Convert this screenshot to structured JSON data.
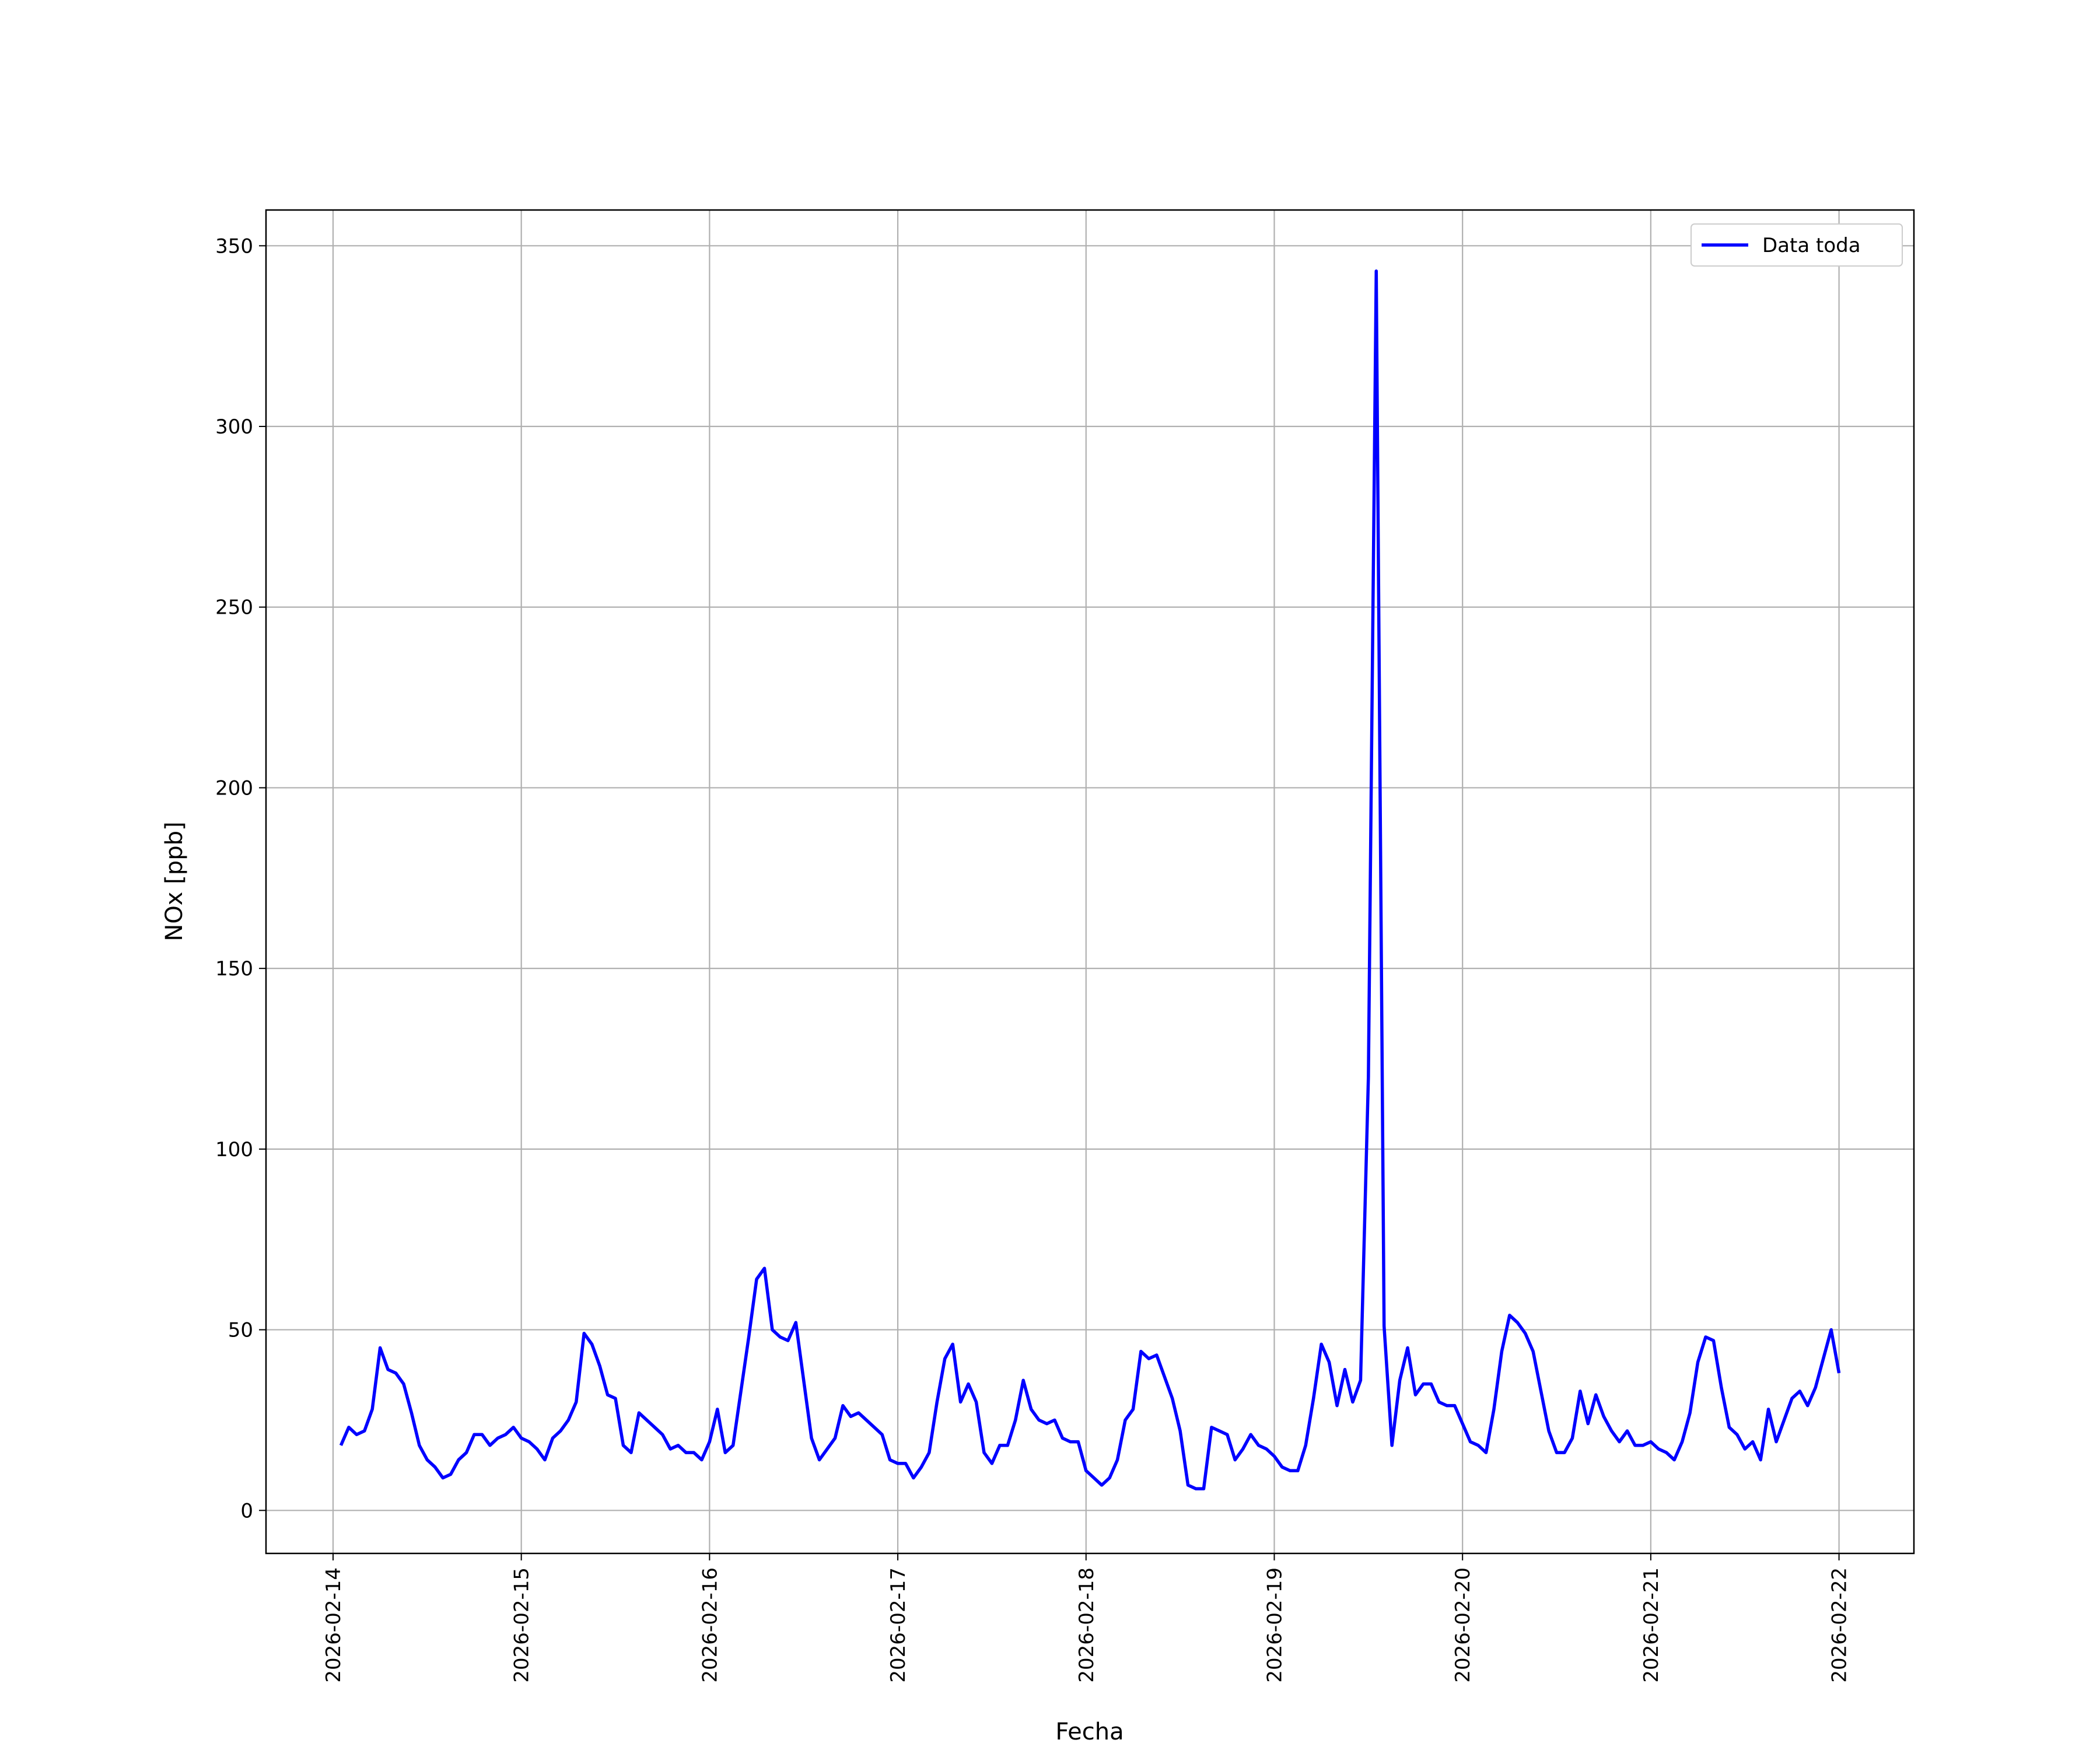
{
  "chart_data": {
    "type": "line",
    "xlabel": "Fecha",
    "ylabel": "NOx [ppb]",
    "x": [
      "2026-02-14 01:00",
      "2026-02-14 02:00",
      "2026-02-14 03:00",
      "2026-02-14 04:00",
      "2026-02-14 05:00",
      "2026-02-14 06:00",
      "2026-02-14 07:00",
      "2026-02-14 08:00",
      "2026-02-14 09:00",
      "2026-02-14 10:00",
      "2026-02-14 11:00",
      "2026-02-14 12:00",
      "2026-02-14 13:00",
      "2026-02-14 14:00",
      "2026-02-14 15:00",
      "2026-02-14 16:00",
      "2026-02-14 17:00",
      "2026-02-14 18:00",
      "2026-02-14 19:00",
      "2026-02-14 20:00",
      "2026-02-14 21:00",
      "2026-02-14 22:00",
      "2026-02-14 23:00",
      "2026-02-15 00:00",
      "2026-02-15 01:00",
      "2026-02-15 02:00",
      "2026-02-15 03:00",
      "2026-02-15 04:00",
      "2026-02-15 05:00",
      "2026-02-15 06:00",
      "2026-02-15 07:00",
      "2026-02-15 08:00",
      "2026-02-15 09:00",
      "2026-02-15 10:00",
      "2026-02-15 11:00",
      "2026-02-15 12:00",
      "2026-02-15 13:00",
      "2026-02-15 14:00",
      "2026-02-15 15:00",
      "2026-02-15 16:00",
      "2026-02-15 17:00",
      "2026-02-15 18:00",
      "2026-02-15 19:00",
      "2026-02-15 20:00",
      "2026-02-15 21:00",
      "2026-02-15 22:00",
      "2026-02-15 23:00",
      "2026-02-16 00:00",
      "2026-02-16 01:00",
      "2026-02-16 02:00",
      "2026-02-16 03:00",
      "2026-02-16 04:00",
      "2026-02-16 05:00",
      "2026-02-16 06:00",
      "2026-02-16 07:00",
      "2026-02-16 08:00",
      "2026-02-16 09:00",
      "2026-02-16 10:00",
      "2026-02-16 11:00",
      "2026-02-16 12:00",
      "2026-02-16 13:00",
      "2026-02-16 14:00",
      "2026-02-16 15:00",
      "2026-02-16 16:00",
      "2026-02-16 17:00",
      "2026-02-16 18:00",
      "2026-02-16 19:00",
      "2026-02-16 20:00",
      "2026-02-16 21:00",
      "2026-02-16 22:00",
      "2026-02-16 23:00",
      "2026-02-17 00:00",
      "2026-02-17 01:00",
      "2026-02-17 02:00",
      "2026-02-17 03:00",
      "2026-02-17 04:00",
      "2026-02-17 05:00",
      "2026-02-17 06:00",
      "2026-02-17 07:00",
      "2026-02-17 08:00",
      "2026-02-17 09:00",
      "2026-02-17 10:00",
      "2026-02-17 11:00",
      "2026-02-17 12:00",
      "2026-02-17 13:00",
      "2026-02-17 14:00",
      "2026-02-17 15:00",
      "2026-02-17 16:00",
      "2026-02-17 17:00",
      "2026-02-17 18:00",
      "2026-02-17 19:00",
      "2026-02-17 20:00",
      "2026-02-17 21:00",
      "2026-02-17 22:00",
      "2026-02-17 23:00",
      "2026-02-18 00:00",
      "2026-02-18 01:00",
      "2026-02-18 02:00",
      "2026-02-18 03:00",
      "2026-02-18 04:00",
      "2026-02-18 05:00",
      "2026-02-18 06:00",
      "2026-02-18 07:00",
      "2026-02-18 08:00",
      "2026-02-18 09:00",
      "2026-02-18 10:00",
      "2026-02-18 11:00",
      "2026-02-18 12:00",
      "2026-02-18 13:00",
      "2026-02-18 14:00",
      "2026-02-18 15:00",
      "2026-02-18 16:00",
      "2026-02-18 17:00",
      "2026-02-18 18:00",
      "2026-02-18 19:00",
      "2026-02-18 20:00",
      "2026-02-18 21:00",
      "2026-02-18 22:00",
      "2026-02-18 23:00",
      "2026-02-19 00:00",
      "2026-02-19 01:00",
      "2026-02-19 02:00",
      "2026-02-19 03:00",
      "2026-02-19 04:00",
      "2026-02-19 05:00",
      "2026-02-19 06:00",
      "2026-02-19 07:00",
      "2026-02-19 08:00",
      "2026-02-19 09:00",
      "2026-02-19 10:00",
      "2026-02-19 11:00",
      "2026-02-19 12:00",
      "2026-02-19 13:00",
      "2026-02-19 14:00",
      "2026-02-19 15:00",
      "2026-02-19 16:00",
      "2026-02-19 17:00",
      "2026-02-19 18:00",
      "2026-02-19 19:00",
      "2026-02-19 20:00",
      "2026-02-19 21:00",
      "2026-02-19 22:00",
      "2026-02-19 23:00",
      "2026-02-20 00:00",
      "2026-02-20 01:00",
      "2026-02-20 02:00",
      "2026-02-20 03:00",
      "2026-02-20 04:00",
      "2026-02-20 05:00",
      "2026-02-20 06:00",
      "2026-02-20 07:00",
      "2026-02-20 08:00",
      "2026-02-20 09:00",
      "2026-02-20 10:00",
      "2026-02-20 11:00",
      "2026-02-20 12:00",
      "2026-02-20 13:00",
      "2026-02-20 14:00",
      "2026-02-20 15:00",
      "2026-02-20 16:00",
      "2026-02-20 17:00",
      "2026-02-20 18:00",
      "2026-02-20 19:00",
      "2026-02-20 20:00",
      "2026-02-20 21:00",
      "2026-02-20 22:00",
      "2026-02-20 23:00",
      "2026-02-21 00:00",
      "2026-02-21 01:00",
      "2026-02-21 02:00",
      "2026-02-21 03:00",
      "2026-02-21 04:00",
      "2026-02-21 05:00",
      "2026-02-21 06:00",
      "2026-02-21 07:00",
      "2026-02-21 08:00",
      "2026-02-21 09:00",
      "2026-02-21 10:00",
      "2026-02-21 11:00",
      "2026-02-21 12:00",
      "2026-02-21 13:00",
      "2026-02-21 14:00",
      "2026-02-21 15:00",
      "2026-02-21 16:00",
      "2026-02-21 17:00",
      "2026-02-21 18:00",
      "2026-02-21 19:00",
      "2026-02-21 20:00",
      "2026-02-21 21:00",
      "2026-02-21 22:00",
      "2026-02-21 23:00",
      "2026-02-22 00:00"
    ],
    "series": [
      {
        "name": "Data toda",
        "color": "#0000ff",
        "values": [
          18,
          23,
          21,
          22,
          28,
          45,
          39,
          38,
          35,
          27,
          18,
          14,
          12,
          9,
          10,
          14,
          16,
          21,
          21,
          18,
          20,
          21,
          23,
          20,
          19,
          17,
          14,
          20,
          22,
          25,
          30,
          49,
          46,
          40,
          32,
          31,
          18,
          16,
          27,
          25,
          23,
          21,
          17,
          18,
          16,
          16,
          14,
          19,
          28,
          16,
          18,
          33,
          48,
          64,
          67,
          50,
          48,
          47,
          52,
          36,
          20,
          14,
          17,
          20,
          29,
          26,
          27,
          25,
          23,
          21,
          14,
          13,
          13,
          9,
          12,
          16,
          30,
          42,
          46,
          30,
          35,
          30,
          16,
          13,
          18,
          18,
          25,
          36,
          28,
          25,
          24,
          25,
          20,
          19,
          19,
          11,
          9,
          7,
          9,
          14,
          25,
          28,
          44,
          42,
          43,
          37,
          31,
          22,
          7,
          6,
          6,
          23,
          22,
          21,
          14,
          17,
          21,
          18,
          17,
          15,
          12,
          11,
          11,
          18,
          31,
          46,
          41,
          29,
          39,
          30,
          36,
          120,
          343,
          51,
          18,
          36,
          45,
          32,
          35,
          35,
          30,
          29,
          29,
          24,
          19,
          18,
          16,
          28,
          44,
          54,
          52,
          49,
          44,
          33,
          22,
          16,
          16,
          20,
          33,
          24,
          32,
          26,
          22,
          19,
          22,
          18,
          18,
          19,
          17,
          16,
          14,
          19,
          27,
          41,
          48,
          47,
          34,
          23,
          21,
          17,
          19,
          14,
          28,
          19,
          25,
          31,
          33,
          29,
          34,
          42,
          50,
          38
        ]
      }
    ],
    "xlim": [
      "2026-02-13 15:27",
      "2026-02-22 09:33"
    ],
    "xticks": [
      "2026-02-14",
      "2026-02-15",
      "2026-02-16",
      "2026-02-17",
      "2026-02-18",
      "2026-02-19",
      "2026-02-20",
      "2026-02-21",
      "2026-02-22"
    ],
    "ylim": [
      -11.9,
      359.9
    ],
    "yticks": [
      0,
      50,
      100,
      150,
      200,
      250,
      300,
      350
    ],
    "grid": true,
    "legend": "upper right"
  }
}
